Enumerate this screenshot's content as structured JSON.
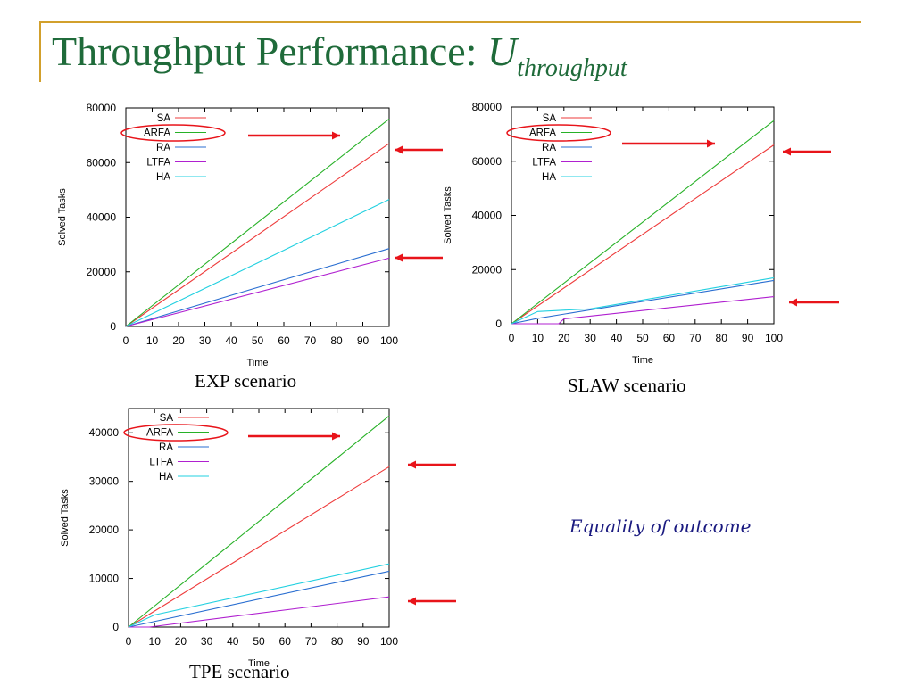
{
  "slide": {
    "title_main": "Throughput Performance: ",
    "title_var": "U",
    "title_sub": "throughput",
    "note": "Equality of outcome",
    "accent_color": "#d2a02c",
    "title_color": "#1f6b3a",
    "arrow_color": "#e8141a"
  },
  "chart_data": [
    {
      "type": "line",
      "caption": "EXP scenario",
      "xlabel": "Time",
      "ylabel": "Solved Tasks",
      "xlim": [
        0,
        100
      ],
      "ylim": [
        0,
        80000
      ],
      "xticks": [
        0,
        10,
        20,
        30,
        40,
        50,
        60,
        70,
        80,
        90,
        100
      ],
      "yticks": [
        0,
        20000,
        40000,
        60000,
        80000
      ],
      "legend_position": "top-left",
      "highlighted_series": "ARFA",
      "series": [
        {
          "name": "SA",
          "color": "#ee3b3b",
          "x": [
            0,
            100
          ],
          "y": [
            0,
            67000
          ]
        },
        {
          "name": "ARFA",
          "color": "#27b127",
          "x": [
            0,
            100
          ],
          "y": [
            0,
            76000
          ]
        },
        {
          "name": "RA",
          "color": "#2b6fd1",
          "x": [
            0,
            100
          ],
          "y": [
            0,
            28500
          ]
        },
        {
          "name": "LTFA",
          "color": "#b020d0",
          "x": [
            0,
            100
          ],
          "y": [
            0,
            25000
          ]
        },
        {
          "name": "HA",
          "color": "#22d0e0",
          "x": [
            0,
            100
          ],
          "y": [
            0,
            46500
          ]
        }
      ]
    },
    {
      "type": "line",
      "caption": "SLAW scenario",
      "xlabel": "Time",
      "ylabel": "Solved Tasks",
      "xlim": [
        0,
        100
      ],
      "ylim": [
        0,
        80000
      ],
      "xticks": [
        0,
        10,
        20,
        30,
        40,
        50,
        60,
        70,
        80,
        90,
        100
      ],
      "yticks": [
        0,
        20000,
        40000,
        60000,
        80000
      ],
      "legend_position": "top-left",
      "highlighted_series": "ARFA",
      "series": [
        {
          "name": "SA",
          "color": "#ee3b3b",
          "x": [
            0,
            100
          ],
          "y": [
            0,
            66000
          ]
        },
        {
          "name": "ARFA",
          "color": "#27b127",
          "x": [
            0,
            100
          ],
          "y": [
            0,
            75000
          ]
        },
        {
          "name": "RA",
          "color": "#2b6fd1",
          "x": [
            0,
            10,
            100
          ],
          "y": [
            0,
            2000,
            16000
          ]
        },
        {
          "name": "LTFA",
          "color": "#b020d0",
          "x": [
            0,
            18,
            20,
            100
          ],
          "y": [
            0,
            0,
            1800,
            10000
          ]
        },
        {
          "name": "HA",
          "color": "#22d0e0",
          "x": [
            0,
            10,
            30,
            100
          ],
          "y": [
            0,
            4500,
            5500,
            17000
          ]
        }
      ]
    },
    {
      "type": "line",
      "caption": "TPE scenario",
      "xlabel": "Time",
      "ylabel": "Solved Tasks",
      "xlim": [
        0,
        100
      ],
      "ylim": [
        0,
        45000
      ],
      "xticks": [
        0,
        10,
        20,
        30,
        40,
        50,
        60,
        70,
        80,
        90,
        100
      ],
      "yticks": [
        0,
        10000,
        20000,
        30000,
        40000
      ],
      "legend_position": "top-left",
      "highlighted_series": "ARFA",
      "series": [
        {
          "name": "SA",
          "color": "#ee3b3b",
          "x": [
            0,
            100
          ],
          "y": [
            0,
            33000
          ]
        },
        {
          "name": "ARFA",
          "color": "#27b127",
          "x": [
            0,
            100
          ],
          "y": [
            0,
            43500
          ]
        },
        {
          "name": "RA",
          "color": "#2b6fd1",
          "x": [
            0,
            100
          ],
          "y": [
            0,
            11500
          ]
        },
        {
          "name": "LTFA",
          "color": "#b020d0",
          "x": [
            0,
            8,
            100
          ],
          "y": [
            0,
            0,
            6200
          ]
        },
        {
          "name": "HA",
          "color": "#22d0e0",
          "x": [
            0,
            10,
            100
          ],
          "y": [
            0,
            2500,
            13000
          ]
        }
      ]
    }
  ]
}
